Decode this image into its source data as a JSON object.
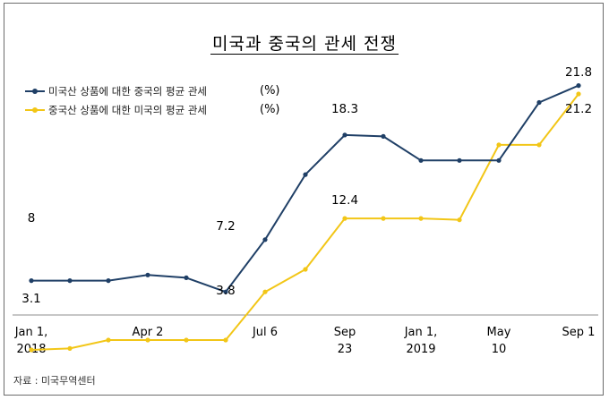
{
  "title": "미국과 중국의 관세 전쟁",
  "source": "자료 :  미국무역센터",
  "colors": {
    "series1": "#1f3f66",
    "series2": "#f2c617",
    "axis": "#8c8c8c"
  },
  "chart_data": {
    "type": "line",
    "title": "미국과 중국의 관세 전쟁",
    "xlabel": "",
    "ylabel": "",
    "ylim": [
      0,
      25
    ],
    "grid": false,
    "legend_position": "top-left",
    "x": [
      "2018-01-01",
      "2018-02-15",
      "2018-03-01",
      "2018-04-02",
      "2018-05-01",
      "2018-06-01",
      "2018-07-06",
      "2018-08-01",
      "2018-09-23",
      "2018-11-01",
      "2019-01-01",
      "2019-03-01",
      "2019-05-10",
      "2019-06-15",
      "2019-09-01"
    ],
    "x_tick_labels": [
      {
        "line1": "Jan 1,",
        "line2": "2018"
      },
      {
        "line1": "Apr 2",
        "line2": ""
      },
      {
        "line1": "Jul 6",
        "line2": ""
      },
      {
        "line1": "Sep",
        "line2": "23"
      },
      {
        "line1": "Jan 1,",
        "line2": "2019"
      },
      {
        "line1": "May",
        "line2": "10"
      },
      {
        "line1": "Sep 1",
        "line2": ""
      }
    ],
    "x_tick_indices": [
      0,
      3,
      6,
      8,
      10,
      12,
      14
    ],
    "series": [
      {
        "name": "미국산 상품에 대한 중국의 평균 관세",
        "unit": "(%)",
        "color": "#1f3f66",
        "values": [
          8,
          8,
          8,
          8.4,
          8.2,
          7.2,
          10.9,
          15.5,
          18.3,
          18.2,
          16.5,
          16.5,
          16.5,
          20.6,
          21.8
        ],
        "labels": [
          {
            "index": 0,
            "text": "8"
          },
          {
            "index": 5,
            "text": "7.2"
          },
          {
            "index": 8,
            "text": "18.3"
          },
          {
            "index": 14,
            "text": "21.8"
          }
        ]
      },
      {
        "name": "중국산 상품에 대한 미국의 평균 관세",
        "unit": "(%)",
        "color": "#f2c617",
        "values": [
          3.1,
          3.2,
          3.8,
          3.8,
          3.8,
          3.8,
          7.2,
          8.8,
          12.4,
          12.4,
          12.4,
          12.3,
          17.6,
          17.6,
          21.2
        ],
        "labels": [
          {
            "index": 0,
            "text": "3.1"
          },
          {
            "index": 5,
            "text": "3.8"
          },
          {
            "index": 8,
            "text": "12.4"
          },
          {
            "index": 14,
            "text": "21.2"
          }
        ]
      }
    ]
  }
}
